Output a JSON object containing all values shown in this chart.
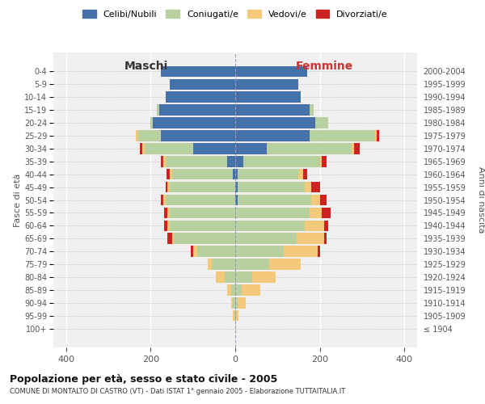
{
  "age_groups": [
    "100+",
    "95-99",
    "90-94",
    "85-89",
    "80-84",
    "75-79",
    "70-74",
    "65-69",
    "60-64",
    "55-59",
    "50-54",
    "45-49",
    "40-44",
    "35-39",
    "30-34",
    "25-29",
    "20-24",
    "15-19",
    "10-14",
    "5-9",
    "0-4"
  ],
  "birth_years": [
    "≤ 1904",
    "1905-1909",
    "1910-1914",
    "1915-1919",
    "1920-1924",
    "1925-1929",
    "1930-1934",
    "1935-1939",
    "1940-1944",
    "1945-1949",
    "1950-1954",
    "1955-1959",
    "1960-1964",
    "1965-1969",
    "1970-1974",
    "1975-1979",
    "1980-1984",
    "1985-1989",
    "1990-1994",
    "1995-1999",
    "2000-2004"
  ],
  "colors": {
    "celibe": "#4472a8",
    "coniugato": "#b8cfa0",
    "vedovo": "#f5c97a",
    "divorziato": "#cc2222"
  },
  "maschi": {
    "celibe": [
      0,
      0,
      0,
      0,
      0,
      0,
      0,
      0,
      0,
      0,
      0,
      0,
      5,
      20,
      100,
      175,
      195,
      180,
      165,
      155,
      175
    ],
    "coniugato": [
      0,
      2,
      5,
      10,
      25,
      55,
      90,
      145,
      155,
      155,
      165,
      155,
      145,
      145,
      115,
      55,
      5,
      5,
      0,
      0,
      0
    ],
    "vedovo": [
      0,
      3,
      5,
      10,
      20,
      10,
      10,
      5,
      5,
      5,
      5,
      5,
      5,
      5,
      5,
      5,
      0,
      0,
      0,
      0,
      0
    ],
    "divorziato": [
      0,
      0,
      0,
      0,
      0,
      0,
      5,
      10,
      8,
      8,
      5,
      5,
      8,
      5,
      5,
      0,
      0,
      0,
      0,
      0,
      0
    ]
  },
  "femmine": {
    "celibe": [
      0,
      0,
      0,
      0,
      0,
      0,
      0,
      0,
      0,
      0,
      5,
      5,
      5,
      20,
      75,
      175,
      190,
      175,
      155,
      150,
      170
    ],
    "coniugato": [
      0,
      2,
      5,
      15,
      40,
      80,
      115,
      145,
      165,
      175,
      175,
      160,
      145,
      180,
      200,
      155,
      30,
      10,
      0,
      0,
      0
    ],
    "vedovo": [
      2,
      5,
      20,
      45,
      55,
      75,
      80,
      65,
      45,
      30,
      20,
      15,
      10,
      5,
      5,
      5,
      0,
      0,
      0,
      0,
      0
    ],
    "divorziato": [
      0,
      0,
      0,
      0,
      0,
      0,
      5,
      5,
      10,
      20,
      15,
      20,
      10,
      10,
      15,
      5,
      0,
      0,
      0,
      0,
      0
    ]
  },
  "xlim": 430,
  "title": "Popolazione per età, sesso e stato civile - 2005",
  "subtitle": "COMUNE DI MONTALTO DI CASTRO (VT) - Dati ISTAT 1° gennaio 2005 - Elaborazione TUTTAITALIA.IT",
  "ylabel_left": "Fasce di età",
  "ylabel_right": "Anni di nascita",
  "xlabel_maschi": "Maschi",
  "xlabel_femmine": "Femmine",
  "legend_labels": [
    "Celibi/Nubili",
    "Coniugati/e",
    "Vedovi/e",
    "Divorziati/e"
  ],
  "bg_color": "#f0f0f0",
  "bar_height": 0.85
}
